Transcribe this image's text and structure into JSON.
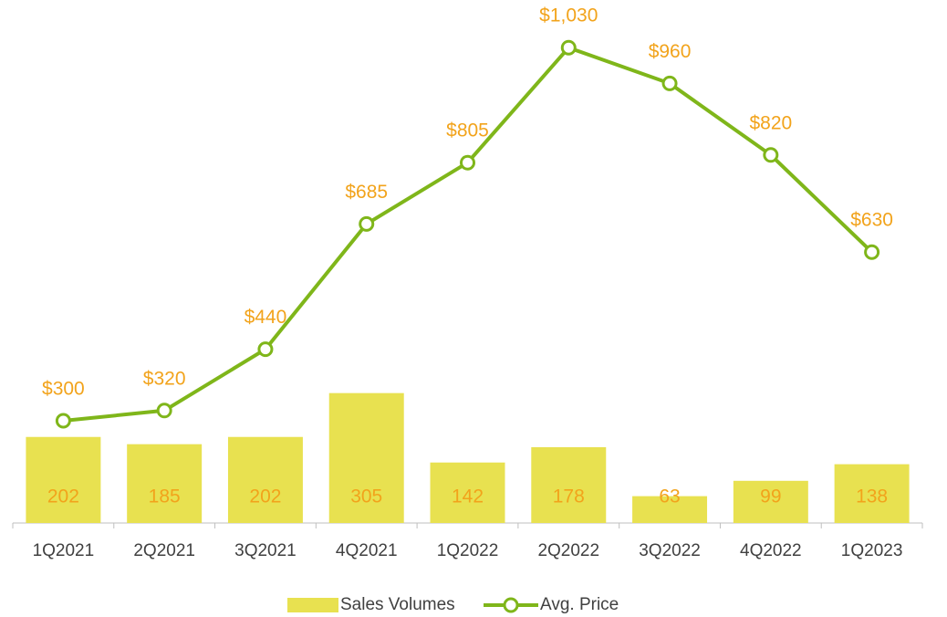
{
  "chart_data": {
    "type": "combo",
    "categories": [
      "1Q2021",
      "2Q2021",
      "3Q2021",
      "4Q2021",
      "1Q2022",
      "2Q2022",
      "3Q2022",
      "4Q2022",
      "1Q2023"
    ],
    "series": [
      {
        "name": "Sales Volumes",
        "type": "bar",
        "color": "#e8e150",
        "values": [
          202,
          185,
          202,
          305,
          142,
          178,
          63,
          99,
          138
        ]
      },
      {
        "name": "Avg. Price",
        "type": "line",
        "axis": "y2",
        "color": "#7fb61a",
        "values": [
          300,
          320,
          440,
          685,
          805,
          1030,
          960,
          820,
          630
        ],
        "value_labels": [
          "$300",
          "$320",
          "$440",
          "$685",
          "$805",
          "$1,030",
          "$960",
          "$820",
          "$630"
        ]
      }
    ],
    "label_color": "#f2a31b",
    "ylim": [
      0,
      1200
    ],
    "y2lim": [
      100,
      1100
    ],
    "legend": "bottom"
  }
}
